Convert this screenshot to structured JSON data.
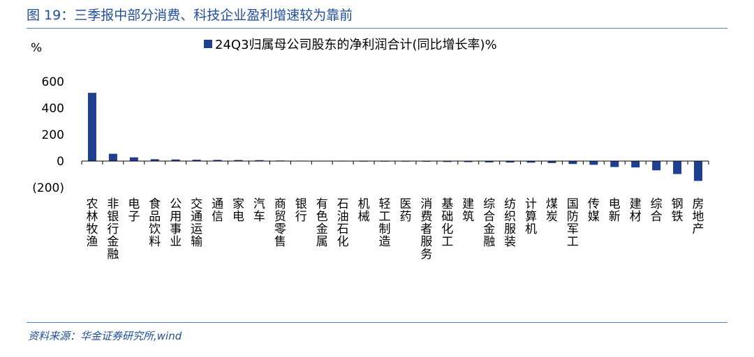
{
  "figure": {
    "title": "图 19：三季报中部分消费、科技企业盈利增速较为靠前",
    "source": "资料来源：华金证券研究所,wind"
  },
  "colors": {
    "accent": "#1f4e9a",
    "bar": "#1f3f8f",
    "rule": "#4f81bd"
  },
  "chart_data": {
    "type": "bar",
    "ylabel": "%",
    "ylim": [
      -200,
      600
    ],
    "yticks": [
      600,
      400,
      200,
      0,
      -200
    ],
    "ytick_labels": [
      "600",
      "400",
      "200",
      "0",
      "(200)"
    ],
    "legend_position": "top",
    "grid": false,
    "series": [
      {
        "name": "24Q3归属母公司股东的净利润合计(同比增长率)%",
        "values": [
          515,
          55,
          28,
          14,
          12,
          10,
          9,
          8,
          7,
          4,
          3,
          2,
          1,
          0,
          -2,
          -3,
          -5,
          -7,
          -8,
          -10,
          -11,
          -12,
          -15,
          -22,
          -28,
          -45,
          -48,
          -70,
          -98,
          -150
        ]
      }
    ],
    "categories": [
      "农林牧渔",
      "非银行金融",
      "电子",
      "食品饮料",
      "公用事业",
      "交通运输",
      "通信",
      "家电",
      "汽车",
      "商贸零售",
      "银行",
      "有色金属",
      "石油石化",
      "机械",
      "轻工制造",
      "医药",
      "消费者服务",
      "基础化工",
      "建筑",
      "综合金融",
      "纺织服装",
      "计算机",
      "煤炭",
      "国防军工",
      "传媒",
      "电新",
      "建材",
      "综合",
      "钢铁",
      "房地产"
    ]
  }
}
